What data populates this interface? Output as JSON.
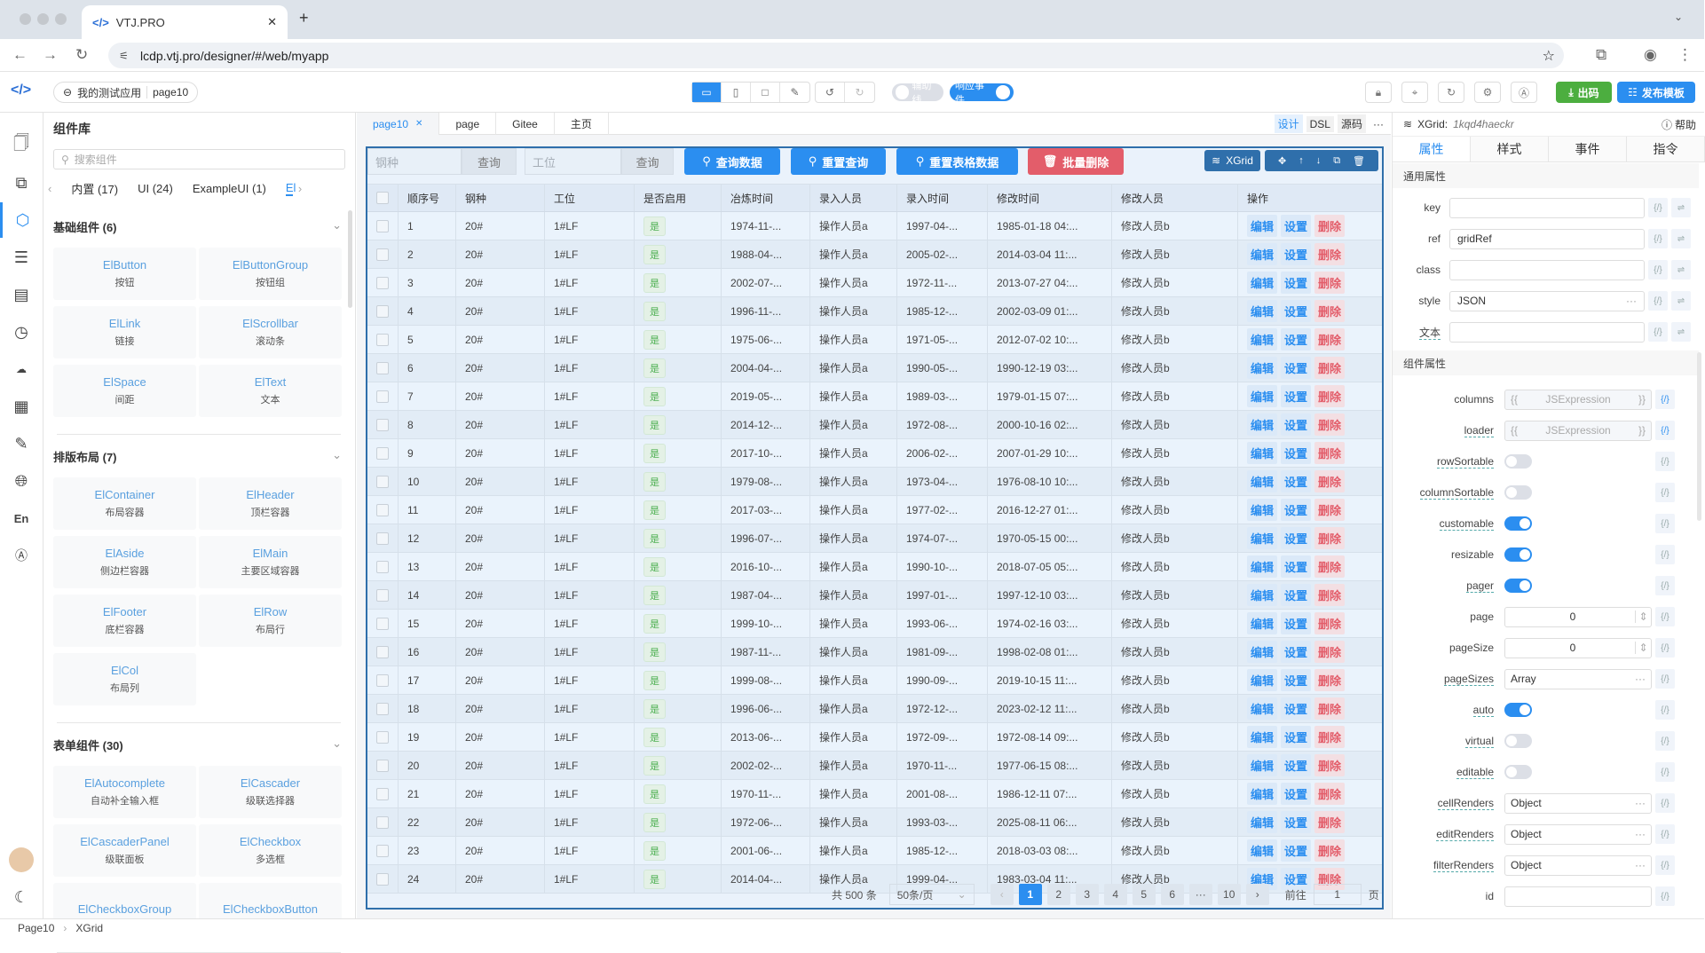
{
  "browser": {
    "tab_title": "VTJ.PRO",
    "url": "lcdp.vtj.pro/designer/#/web/myapp"
  },
  "toolbar": {
    "app_name": "我的测试应用",
    "page_name": "page10",
    "guide_label": "辅助线",
    "events_label": "响应事件",
    "export_label": "出码",
    "publish_label": "发布模板",
    "guide_on": false,
    "events_on": true
  },
  "colors": {
    "primary": "#2b8ef0",
    "danger": "#e35d6a",
    "success": "#4cae3f",
    "grid_border": "#2f6fab"
  },
  "library": {
    "title": "组件库",
    "search_placeholder": "搜索组件",
    "categories": [
      "内置 (17)",
      "UI (24)",
      "ExampleUI (1)",
      "El"
    ],
    "sections": [
      {
        "title": "基础组件 (6)",
        "items": [
          {
            "name": "ElButton",
            "desc": "按钮"
          },
          {
            "name": "ElButtonGroup",
            "desc": "按钮组"
          },
          {
            "name": "ElLink",
            "desc": "链接"
          },
          {
            "name": "ElScrollbar",
            "desc": "滚动条"
          },
          {
            "name": "ElSpace",
            "desc": "间距"
          },
          {
            "name": "ElText",
            "desc": "文本"
          }
        ]
      },
      {
        "title": "排版布局 (7)",
        "items": [
          {
            "name": "ElContainer",
            "desc": "布局容器"
          },
          {
            "name": "ElHeader",
            "desc": "顶栏容器"
          },
          {
            "name": "ElAside",
            "desc": "侧边栏容器"
          },
          {
            "name": "ElMain",
            "desc": "主要区域容器"
          },
          {
            "name": "ElFooter",
            "desc": "底栏容器"
          },
          {
            "name": "ElRow",
            "desc": "布局行"
          },
          {
            "name": "ElCol",
            "desc": "布局列"
          }
        ]
      },
      {
        "title": "表单组件 (30)",
        "items": [
          {
            "name": "ElAutocomplete",
            "desc": "自动补全输入框"
          },
          {
            "name": "ElCascader",
            "desc": "级联选择器"
          },
          {
            "name": "ElCascaderPanel",
            "desc": "级联面板"
          },
          {
            "name": "ElCheckbox",
            "desc": "多选框"
          },
          {
            "name": "ElCheckboxGroup",
            "desc": ""
          },
          {
            "name": "ElCheckboxButton",
            "desc": ""
          }
        ]
      }
    ]
  },
  "canvas": {
    "tabs": [
      {
        "label": "page10",
        "active": true,
        "closable": true
      },
      {
        "label": "page"
      },
      {
        "label": "Gitee"
      },
      {
        "label": "主页"
      }
    ],
    "modes": [
      "设计",
      "DSL",
      "源码"
    ],
    "more": "···"
  },
  "grid": {
    "filter1_placeholder": "钢种",
    "filter2_placeholder": "工位",
    "query_label": "查询",
    "buttons": {
      "query": "查询数据",
      "reset": "重置查询",
      "reset_table": "重置表格数据",
      "batch_delete": "批量删除"
    },
    "badge": "XGrid",
    "columns": [
      "顺序号",
      "钢种",
      "工位",
      "是否启用",
      "冶炼时间",
      "录入人员",
      "录入时间",
      "修改时间",
      "修改人员",
      "操作"
    ],
    "actions": [
      "编辑",
      "设置",
      "删除"
    ],
    "rows": [
      [
        "1",
        "20#",
        "1#LF",
        "是",
        "1974-11-...",
        "操作人员a",
        "1997-04-...",
        "1985-01-18 04:...",
        "修改人员b"
      ],
      [
        "2",
        "20#",
        "1#LF",
        "是",
        "1988-04-...",
        "操作人员a",
        "2005-02-...",
        "2014-03-04 11:...",
        "修改人员b"
      ],
      [
        "3",
        "20#",
        "1#LF",
        "是",
        "2002-07-...",
        "操作人员a",
        "1972-11-...",
        "2013-07-27 04:...",
        "修改人员b"
      ],
      [
        "4",
        "20#",
        "1#LF",
        "是",
        "1996-11-...",
        "操作人员a",
        "1985-12-...",
        "2002-03-09 01:...",
        "修改人员b"
      ],
      [
        "5",
        "20#",
        "1#LF",
        "是",
        "1975-06-...",
        "操作人员a",
        "1971-05-...",
        "2012-07-02 10:...",
        "修改人员b"
      ],
      [
        "6",
        "20#",
        "1#LF",
        "是",
        "2004-04-...",
        "操作人员a",
        "1990-05-...",
        "1990-12-19 03:...",
        "修改人员b"
      ],
      [
        "7",
        "20#",
        "1#LF",
        "是",
        "2019-05-...",
        "操作人员a",
        "1989-03-...",
        "1979-01-15 07:...",
        "修改人员b"
      ],
      [
        "8",
        "20#",
        "1#LF",
        "是",
        "2014-12-...",
        "操作人员a",
        "1972-08-...",
        "2000-10-16 02:...",
        "修改人员b"
      ],
      [
        "9",
        "20#",
        "1#LF",
        "是",
        "2017-10-...",
        "操作人员a",
        "2006-02-...",
        "2007-01-29 10:...",
        "修改人员b"
      ],
      [
        "10",
        "20#",
        "1#LF",
        "是",
        "1979-08-...",
        "操作人员a",
        "1973-04-...",
        "1976-08-10 10:...",
        "修改人员b"
      ],
      [
        "11",
        "20#",
        "1#LF",
        "是",
        "2017-03-...",
        "操作人员a",
        "1977-02-...",
        "2016-12-27 01:...",
        "修改人员b"
      ],
      [
        "12",
        "20#",
        "1#LF",
        "是",
        "1996-07-...",
        "操作人员a",
        "1974-07-...",
        "1970-05-15 00:...",
        "修改人员b"
      ],
      [
        "13",
        "20#",
        "1#LF",
        "是",
        "2016-10-...",
        "操作人员a",
        "1990-10-...",
        "2018-07-05 05:...",
        "修改人员b"
      ],
      [
        "14",
        "20#",
        "1#LF",
        "是",
        "1987-04-...",
        "操作人员a",
        "1997-01-...",
        "1997-12-10 03:...",
        "修改人员b"
      ],
      [
        "15",
        "20#",
        "1#LF",
        "是",
        "1999-10-...",
        "操作人员a",
        "1993-06-...",
        "1974-02-16 03:...",
        "修改人员b"
      ],
      [
        "16",
        "20#",
        "1#LF",
        "是",
        "1987-11-...",
        "操作人员a",
        "1981-09-...",
        "1998-02-08 01:...",
        "修改人员b"
      ],
      [
        "17",
        "20#",
        "1#LF",
        "是",
        "1999-08-...",
        "操作人员a",
        "1990-09-...",
        "2019-10-15 11:...",
        "修改人员b"
      ],
      [
        "18",
        "20#",
        "1#LF",
        "是",
        "1996-06-...",
        "操作人员a",
        "1972-12-...",
        "2023-02-12 11:...",
        "修改人员b"
      ],
      [
        "19",
        "20#",
        "1#LF",
        "是",
        "2013-06-...",
        "操作人员a",
        "1972-09-...",
        "1972-08-14 09:...",
        "修改人员b"
      ],
      [
        "20",
        "20#",
        "1#LF",
        "是",
        "2002-02-...",
        "操作人员a",
        "1970-11-...",
        "1977-06-15 08:...",
        "修改人员b"
      ],
      [
        "21",
        "20#",
        "1#LF",
        "是",
        "1970-11-...",
        "操作人员a",
        "2001-08-...",
        "1986-12-11 07:...",
        "修改人员b"
      ],
      [
        "22",
        "20#",
        "1#LF",
        "是",
        "1972-06-...",
        "操作人员a",
        "1993-03-...",
        "2025-08-11 06:...",
        "修改人员b"
      ],
      [
        "23",
        "20#",
        "1#LF",
        "是",
        "2001-06-...",
        "操作人员a",
        "1985-12-...",
        "2018-03-03 08:...",
        "修改人员b"
      ],
      [
        "24",
        "20#",
        "1#LF",
        "是",
        "2014-04-...",
        "操作人员a",
        "1999-04-...",
        "1983-03-04 11:...",
        "修改人员b"
      ]
    ],
    "pager": {
      "total": "共 500 条",
      "page_size": "50条/页",
      "pages": [
        "1",
        "2",
        "3",
        "4",
        "5",
        "6",
        "···",
        "10"
      ],
      "current": "1",
      "goto_label": "前往",
      "goto_value": "1",
      "page_suffix": "页"
    }
  },
  "props": {
    "component": "XGrid:",
    "component_id": "1kqd4haeckr",
    "help": "帮助",
    "tabs": [
      "属性",
      "样式",
      "事件",
      "指令"
    ],
    "common_title": "通用属性",
    "common": [
      {
        "label": "key",
        "value": ""
      },
      {
        "label": "ref",
        "value": "gridRef"
      },
      {
        "label": "class",
        "value": ""
      },
      {
        "label": "style",
        "value": "JSON",
        "more": true
      },
      {
        "label": "文本",
        "value": "",
        "dash": true
      }
    ],
    "component_title": "组件属性",
    "items": [
      {
        "label": "columns",
        "type": "expr",
        "value": "JSExpression"
      },
      {
        "label": "loader",
        "type": "expr",
        "value": "JSExpression",
        "dash": true
      },
      {
        "label": "rowSortable",
        "type": "switch",
        "on": false,
        "dash": true
      },
      {
        "label": "columnSortable",
        "type": "switch",
        "on": false,
        "dash": true
      },
      {
        "label": "customable",
        "type": "switch",
        "on": true,
        "dash": true
      },
      {
        "label": "resizable",
        "type": "switch",
        "on": true
      },
      {
        "label": "pager",
        "type": "switch",
        "on": true,
        "dash": true
      },
      {
        "label": "page",
        "type": "number",
        "value": "0"
      },
      {
        "label": "pageSize",
        "type": "number",
        "value": "0"
      },
      {
        "label": "pageSizes",
        "type": "obj",
        "value": "Array",
        "dash": true
      },
      {
        "label": "auto",
        "type": "switch",
        "on": true,
        "dash": true
      },
      {
        "label": "virtual",
        "type": "switch",
        "on": false,
        "dash": true
      },
      {
        "label": "editable",
        "type": "switch",
        "on": false,
        "dash": true
      },
      {
        "label": "cellRenders",
        "type": "obj",
        "value": "Object",
        "dash": true
      },
      {
        "label": "editRenders",
        "type": "obj",
        "value": "Object",
        "dash": true
      },
      {
        "label": "filterRenders",
        "type": "obj",
        "value": "Object",
        "dash": true
      },
      {
        "label": "id",
        "type": "text",
        "value": ""
      }
    ]
  },
  "status": {
    "crumbs": [
      "Page10",
      "XGrid"
    ]
  }
}
